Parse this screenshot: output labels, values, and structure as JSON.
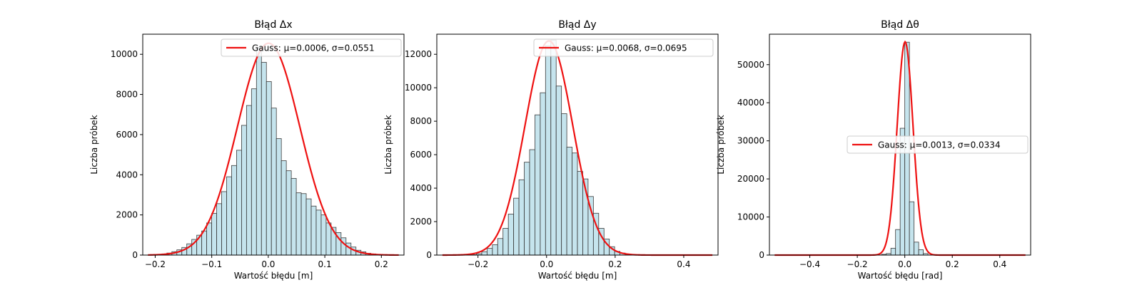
{
  "chart_data": [
    {
      "type": "histogram",
      "title": "Błąd Δx",
      "xlabel": "Wartość błędu [m]",
      "ylabel": "Liczba próbek",
      "xlim": [
        -0.222,
        0.24
      ],
      "ylim": [
        0,
        11000
      ],
      "xticks": [
        -0.2,
        -0.1,
        0.0,
        0.1,
        0.2
      ],
      "xtick_labels": [
        "−0.2",
        "−0.1",
        "0.0",
        "0.1",
        "0.2"
      ],
      "yticks": [
        0,
        2000,
        4000,
        6000,
        8000,
        10000
      ],
      "ytick_labels": [
        "0",
        "2000",
        "4000",
        "6000",
        "8000",
        "10000"
      ],
      "bins": {
        "start": -0.2145,
        "width": 0.0088,
        "counts": [
          0,
          15,
          30,
          60,
          100,
          170,
          260,
          380,
          560,
          780,
          990,
          1200,
          1600,
          2080,
          2560,
          3160,
          3900,
          4460,
          5220,
          6460,
          7450,
          8280,
          10350,
          9600,
          8640,
          7320,
          5800,
          4700,
          4200,
          3820,
          3100,
          3060,
          2800,
          2440,
          2240,
          2000,
          1600,
          1380,
          1120,
          860,
          600,
          400,
          240,
          160,
          90,
          60,
          30,
          10,
          0,
          0
        ]
      },
      "fit": {
        "label": "Gauss: μ=0.0006, σ=0.0551",
        "mu": 0.0006,
        "sigma": 0.0551,
        "peak": 10550,
        "color": "#ee1111"
      },
      "legend_position": "top-right",
      "bar_color": "#add8e6"
    },
    {
      "type": "histogram",
      "title": "Błąd Δy",
      "xlabel": "Wartość błędu [m]",
      "ylabel": "Liczba próbek",
      "xlim": [
        -0.32,
        0.5
      ],
      "ylim": [
        0,
        13200
      ],
      "xticks": [
        -0.2,
        0.0,
        0.2,
        0.4
      ],
      "xtick_labels": [
        "−0.2",
        "0.0",
        "0.2",
        "0.4"
      ],
      "yticks": [
        0,
        2000,
        4000,
        6000,
        8000,
        10000,
        12000
      ],
      "ytick_labels": [
        "0",
        "2000",
        "4000",
        "6000",
        "8000",
        "10000",
        "12000"
      ],
      "bins": {
        "start": -0.22,
        "width": 0.0155,
        "counts": [
          20,
          80,
          200,
          400,
          620,
          990,
          1600,
          2450,
          3400,
          4500,
          5550,
          6300,
          8380,
          9700,
          12500,
          12850,
          10100,
          8450,
          6450,
          6100,
          5000,
          4550,
          3500,
          2500,
          1600,
          960,
          500,
          220,
          120,
          50,
          20,
          10,
          0
        ]
      },
      "fit": {
        "label": "Gauss: μ=0.0068, σ=0.0695",
        "mu": 0.0068,
        "sigma": 0.0695,
        "peak": 12800,
        "color": "#ee1111"
      },
      "legend_position": "top-right",
      "bar_color": "#add8e6"
    },
    {
      "type": "histogram",
      "title": "Błąd Δθ",
      "xlabel": "Wartość błędu [rad]",
      "ylabel": "Liczba próbek",
      "xlim": [
        -0.57,
        0.53
      ],
      "ylim": [
        0,
        58000
      ],
      "xticks": [
        -0.4,
        -0.2,
        0.0,
        0.2,
        0.4
      ],
      "xtick_labels": [
        "−0.4",
        "−0.2",
        "0.0",
        "0.2",
        "0.4"
      ],
      "yticks": [
        0,
        10000,
        20000,
        30000,
        40000,
        50000
      ],
      "ytick_labels": [
        "0",
        "10000",
        "20000",
        "30000",
        "40000",
        "50000"
      ],
      "bins": {
        "start": -0.0975,
        "width": 0.0195,
        "counts": [
          200,
          400,
          1800,
          6700,
          33300,
          55900,
          14000,
          3400,
          1400,
          400
        ]
      },
      "fit": {
        "label": "Gauss: μ=0.0013, σ=0.0334",
        "mu": 0.0013,
        "sigma": 0.0334,
        "peak": 56000,
        "color": "#ee1111"
      },
      "legend_position": "center-right",
      "bar_color": "#add8e6"
    }
  ]
}
